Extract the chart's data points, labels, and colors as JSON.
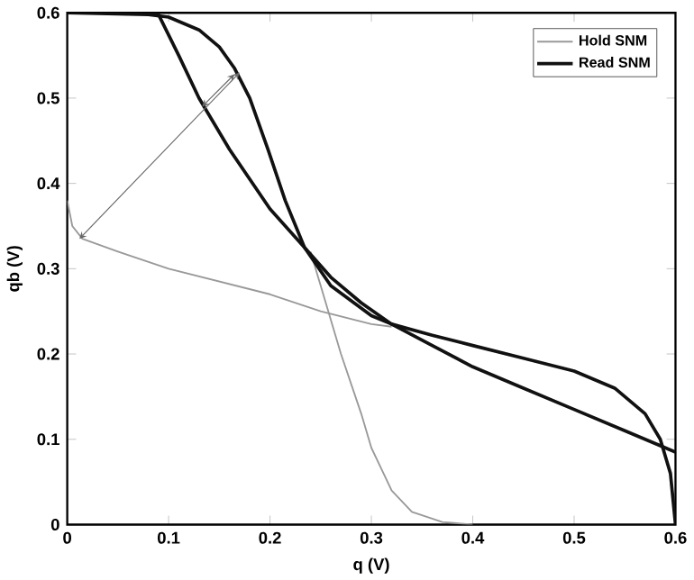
{
  "chart_data": {
    "type": "line",
    "xlabel": "q (V)",
    "ylabel": "qb (V)",
    "xlim": [
      0,
      0.6
    ],
    "ylim": [
      0,
      0.6
    ],
    "xticks": [
      0,
      0.1,
      0.2,
      0.3,
      0.4,
      0.5,
      0.6
    ],
    "yticks": [
      0,
      0.1,
      0.2,
      0.3,
      0.4,
      0.5,
      0.6
    ],
    "grid": false,
    "legend": "top right",
    "marker": "none",
    "line_style": "solid",
    "series": [
      {
        "name": "Hold SNM",
        "color": "#999999",
        "x": [
          0,
          0.005,
          0.015,
          0.05,
          0.1,
          0.15,
          0.2,
          0.25,
          0.3,
          0.32
        ],
        "values": [
          0.38,
          0.35,
          0.335,
          0.32,
          0.3,
          0.285,
          0.27,
          0.25,
          0.235,
          0.232
        ]
      },
      {
        "color": "#999999",
        "x": [
          0.24,
          0.25,
          0.27,
          0.29,
          0.3,
          0.32,
          0.34,
          0.37,
          0.4
        ],
        "values": [
          0.32,
          0.28,
          0.2,
          0.13,
          0.09,
          0.04,
          0.015,
          0.003,
          0
        ]
      },
      {
        "name": "Read SNM",
        "color": "#111111",
        "x": [
          0,
          0.08,
          0.1,
          0.13,
          0.15,
          0.165,
          0.18,
          0.198,
          0.215,
          0.234,
          0.26,
          0.3,
          0.32,
          0.36,
          0.4,
          0.45,
          0.5,
          0.54,
          0.57,
          0.585,
          0.595,
          0.6
        ],
        "values": [
          0.6,
          0.598,
          0.595,
          0.58,
          0.56,
          0.535,
          0.5,
          0.44,
          0.38,
          0.325,
          0.28,
          0.245,
          0.235,
          0.222,
          0.21,
          0.195,
          0.18,
          0.16,
          0.13,
          0.1,
          0.06,
          0
        ]
      },
      {
        "color": "#111111",
        "x": [
          0.08,
          0.09,
          0.11,
          0.13,
          0.16,
          0.2,
          0.234,
          0.26,
          0.29,
          0.32,
          0.36,
          0.4,
          0.45,
          0.5,
          0.55,
          0.59,
          0.6
        ],
        "values": [
          0.6,
          0.598,
          0.55,
          0.5,
          0.44,
          0.37,
          0.325,
          0.29,
          0.26,
          0.235,
          0.21,
          0.185,
          0.16,
          0.135,
          0.11,
          0.09,
          0.085
        ]
      }
    ]
  }
}
